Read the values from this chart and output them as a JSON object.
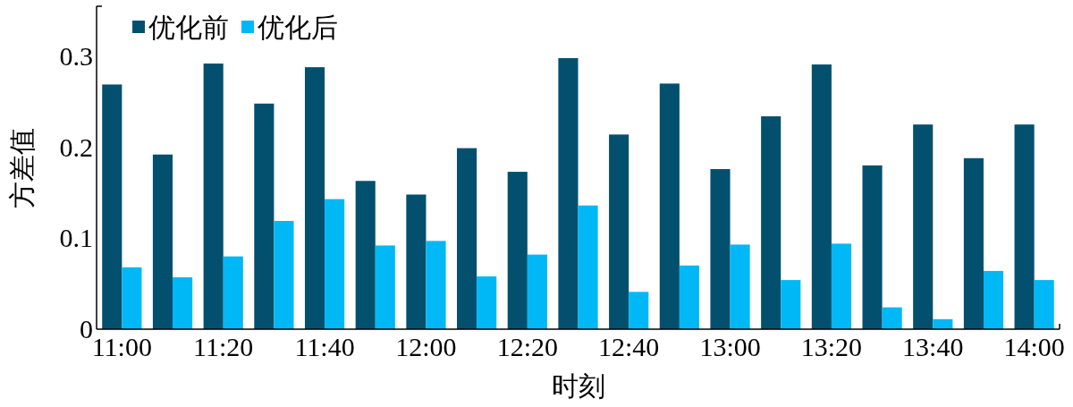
{
  "chart_data": {
    "type": "bar",
    "xlabel": "时刻",
    "ylabel": "方差值",
    "categories": [
      "11:00",
      null,
      "11:20",
      null,
      "11:40",
      null,
      "12:00",
      null,
      "12:20",
      null,
      "12:40",
      null,
      "13:00",
      null,
      "13:20",
      null,
      "13:40",
      null,
      "14:00"
    ],
    "series": [
      {
        "name": "优化前",
        "color": "#02506e",
        "values": [
          0.269,
          0.192,
          0.292,
          0.248,
          0.288,
          0.163,
          0.148,
          0.199,
          0.173,
          0.298,
          0.214,
          0.27,
          0.176,
          0.234,
          0.291,
          0.18,
          0.225,
          0.188,
          0.225
        ]
      },
      {
        "name": "优化后",
        "color": "#00b8f5",
        "values": [
          0.068,
          0.057,
          0.08,
          0.119,
          0.143,
          0.092,
          0.097,
          0.058,
          0.082,
          0.136,
          0.041,
          0.07,
          0.093,
          0.054,
          0.094,
          0.024,
          0.011,
          0.064,
          0.054
        ]
      }
    ],
    "ylim": [
      0,
      0.355
    ],
    "yticks": [
      0,
      0.1,
      0.2,
      0.3
    ],
    "legend": "top left"
  }
}
